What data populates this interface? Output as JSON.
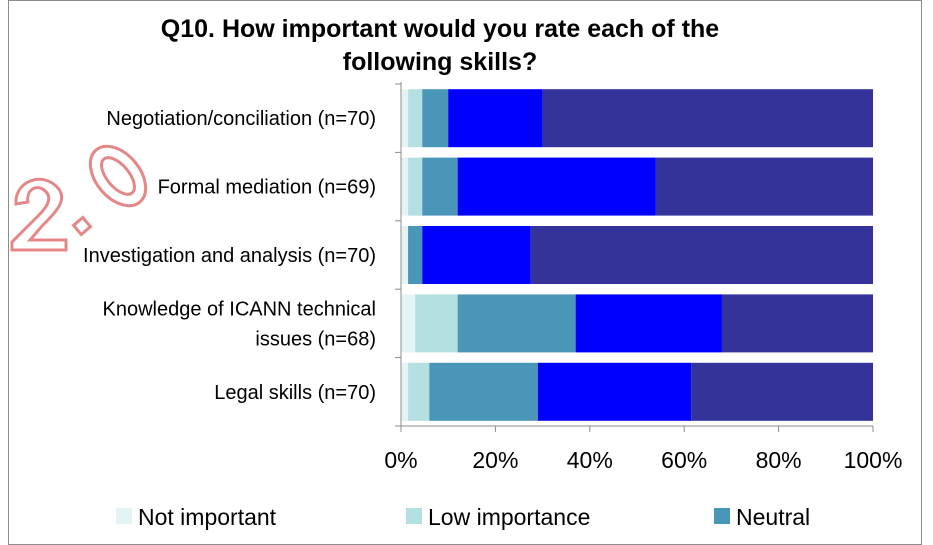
{
  "chart_data": {
    "type": "bar",
    "orientation": "horizontal",
    "stacked": "percent",
    "title": "Q10. How important would you rate each of the following skills?",
    "categories": [
      [
        "Negotiation/conciliation (n=70)"
      ],
      [
        "Formal mediation (n=69)"
      ],
      [
        "Investigation and analysis (n=70)"
      ],
      [
        "Knowledge of ICANN technical",
        "issues (n=68)"
      ],
      [
        "Legal skills (n=70)"
      ]
    ],
    "series": [
      {
        "name": "Not important",
        "color": "#e4f4f4",
        "values": [
          1.5,
          1.5,
          1.5,
          3.0,
          1.5
        ]
      },
      {
        "name": "Low importance",
        "color": "#b5e0e2",
        "values": [
          3.0,
          3.0,
          0.0,
          9.0,
          4.5
        ]
      },
      {
        "name": "Neutral",
        "color": "#4a96b8",
        "values": [
          5.5,
          7.5,
          3.0,
          25.0,
          23.0
        ]
      },
      {
        "name": "",
        "color": "#0000ff",
        "values": [
          20.0,
          42.0,
          23.0,
          31.0,
          32.5
        ]
      },
      {
        "name": "",
        "color": "#333399",
        "values": [
          70.0,
          46.0,
          72.5,
          32.0,
          38.5
        ]
      }
    ],
    "xlim": [
      0,
      100
    ],
    "x_ticks": [
      "0%",
      "20%",
      "40%",
      "60%",
      "80%",
      "100%"
    ],
    "grid": false,
    "legend_position": "bottom"
  }
}
